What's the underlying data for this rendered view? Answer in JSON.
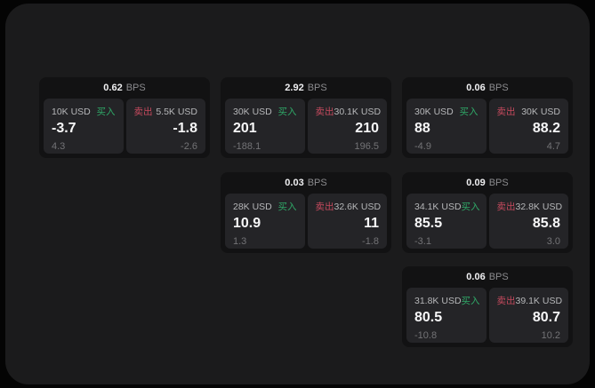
{
  "labels": {
    "bps": "BPS",
    "buy": "买入",
    "sell": "卖出"
  },
  "colors": {
    "surface_bg": "#1b1b1c",
    "card_bg": "#121213",
    "pane_bg": "#242427",
    "buy_green": "#2fa968",
    "sell_red": "#c64a5e",
    "value_white": "#f7f7f8",
    "muted_gray": "#737376"
  },
  "cards": [
    {
      "bps": "0.62",
      "buy": {
        "amount": "10K USD",
        "value": "-3.7",
        "delta": "4.3"
      },
      "sell": {
        "amount": "5.5K USD",
        "value": "-1.8",
        "delta": "-2.6"
      }
    },
    {
      "bps": "2.92",
      "buy": {
        "amount": "30K USD",
        "value": "201",
        "delta": "-188.1"
      },
      "sell": {
        "amount": "30.1K USD",
        "value": "210",
        "delta": "196.5"
      }
    },
    {
      "bps": "0.06",
      "buy": {
        "amount": "30K USD",
        "value": "88",
        "delta": "-4.9"
      },
      "sell": {
        "amount": "30K USD",
        "value": "88.2",
        "delta": "4.7"
      }
    },
    {
      "bps": "0.03",
      "buy": {
        "amount": "28K USD",
        "value": "10.9",
        "delta": "1.3"
      },
      "sell": {
        "amount": "32.6K USD",
        "value": "11",
        "delta": "-1.8"
      }
    },
    {
      "bps": "0.09",
      "buy": {
        "amount": "34.1K USD",
        "value": "85.5",
        "delta": "-3.1"
      },
      "sell": {
        "amount": "32.8K USD",
        "value": "85.8",
        "delta": "3.0"
      }
    },
    {
      "bps": "0.06",
      "buy": {
        "amount": "31.8K USD",
        "value": "80.5",
        "delta": "-10.8"
      },
      "sell": {
        "amount": "39.1K USD",
        "value": "80.7",
        "delta": "10.2"
      }
    }
  ]
}
